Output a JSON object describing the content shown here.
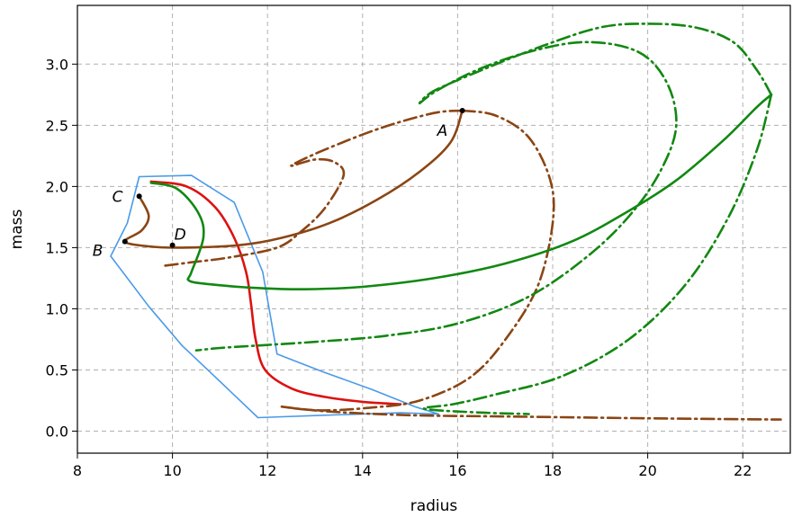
{
  "chart_data": {
    "type": "line",
    "title": "",
    "xlabel": "radius",
    "ylabel": "mass",
    "xlim": [
      8,
      23
    ],
    "ylim": [
      -0.18,
      3.48
    ],
    "xticks": [
      8,
      10,
      12,
      14,
      16,
      18,
      20,
      22
    ],
    "yticks": [
      0.0,
      0.5,
      1.0,
      1.5,
      2.0,
      2.5,
      3.0
    ],
    "xtick_labels": [
      "8",
      "10",
      "12",
      "14",
      "16",
      "18",
      "20",
      "22"
    ],
    "ytick_labels": [
      "0.0",
      "0.5",
      "1.0",
      "1.5",
      "2.0",
      "2.5",
      "3.0"
    ],
    "grid": true,
    "legend": "none",
    "series": [
      {
        "color": "#1f77b4",
        "light_color": "#4a9ae8",
        "style": "solid",
        "points": [
          [
            9.3,
            2.08
          ],
          [
            10.4,
            2.09
          ],
          [
            11.3,
            1.87
          ],
          [
            11.9,
            1.3
          ],
          [
            12.2,
            0.63
          ],
          [
            13.2,
            0.48
          ],
          [
            14.2,
            0.34
          ],
          [
            15.1,
            0.2
          ],
          [
            15.6,
            0.14
          ],
          [
            14.8,
            0.15
          ],
          [
            13.2,
            0.13
          ],
          [
            11.8,
            0.11
          ],
          [
            10.8,
            0.48
          ],
          [
            10.2,
            0.7
          ],
          [
            9.5,
            1.02
          ],
          [
            8.7,
            1.43
          ],
          [
            9.05,
            1.7
          ],
          [
            9.3,
            2.08
          ]
        ]
      },
      {
        "color": "#dd1111",
        "style": "solid",
        "points": [
          [
            9.55,
            2.04
          ],
          [
            10.3,
            2.0
          ],
          [
            10.9,
            1.83
          ],
          [
            11.3,
            1.58
          ],
          [
            11.55,
            1.3
          ],
          [
            11.65,
            1.05
          ],
          [
            11.75,
            0.75
          ],
          [
            11.95,
            0.5
          ],
          [
            12.5,
            0.35
          ],
          [
            13.2,
            0.28
          ],
          [
            14.0,
            0.24
          ],
          [
            14.8,
            0.22
          ]
        ]
      },
      {
        "color": "#8b4513",
        "style": "solid",
        "points": [
          [
            9.3,
            1.92
          ],
          [
            9.5,
            1.76
          ],
          [
            9.35,
            1.64
          ],
          [
            9.0,
            1.55
          ],
          [
            9.5,
            1.51
          ],
          [
            10.2,
            1.5
          ],
          [
            11.4,
            1.52
          ],
          [
            12.3,
            1.58
          ],
          [
            13.3,
            1.7
          ],
          [
            14.3,
            1.89
          ],
          [
            15.2,
            2.12
          ],
          [
            15.85,
            2.36
          ],
          [
            16.1,
            2.62
          ]
        ]
      },
      {
        "color": "#8b4513",
        "style": "dashdot",
        "points": [
          [
            16.1,
            2.62
          ],
          [
            16.8,
            2.58
          ],
          [
            17.5,
            2.4
          ],
          [
            17.95,
            2.05
          ],
          [
            18.0,
            1.7
          ],
          [
            17.7,
            1.2
          ],
          [
            17.1,
            0.8
          ],
          [
            16.3,
            0.45
          ],
          [
            15.2,
            0.25
          ],
          [
            14.1,
            0.19
          ],
          [
            13.1,
            0.17
          ],
          [
            12.3,
            0.2
          ],
          [
            13.3,
            0.16
          ],
          [
            15.0,
            0.13
          ],
          [
            17.0,
            0.12
          ],
          [
            20.0,
            0.105
          ],
          [
            22.8,
            0.095
          ]
        ]
      },
      {
        "color": "#8b4513",
        "style": "dashdot",
        "points": [
          [
            16.1,
            2.62
          ],
          [
            15.5,
            2.6
          ],
          [
            14.4,
            2.48
          ],
          [
            13.2,
            2.3
          ],
          [
            12.5,
            2.17
          ],
          [
            13.0,
            2.22
          ],
          [
            13.4,
            2.2
          ],
          [
            13.6,
            2.09
          ],
          [
            13.2,
            1.82
          ],
          [
            12.7,
            1.63
          ],
          [
            12.2,
            1.5
          ],
          [
            11.2,
            1.42
          ],
          [
            10.4,
            1.38
          ],
          [
            9.8,
            1.35
          ]
        ]
      },
      {
        "color": "#118811",
        "style": "solid",
        "points": [
          [
            9.55,
            2.03
          ],
          [
            10.1,
            1.98
          ],
          [
            10.55,
            1.78
          ],
          [
            10.65,
            1.58
          ],
          [
            10.4,
            1.3
          ],
          [
            10.35,
            1.23
          ],
          [
            10.8,
            1.2
          ],
          [
            11.8,
            1.17
          ],
          [
            12.8,
            1.16
          ],
          [
            14.0,
            1.18
          ],
          [
            15.5,
            1.25
          ],
          [
            17.0,
            1.37
          ],
          [
            18.4,
            1.55
          ],
          [
            19.6,
            1.8
          ],
          [
            20.6,
            2.05
          ],
          [
            21.6,
            2.38
          ],
          [
            22.3,
            2.65
          ],
          [
            22.6,
            2.75
          ]
        ]
      },
      {
        "color": "#118811",
        "style": "dashdot",
        "points": [
          [
            22.6,
            2.75
          ],
          [
            22.3,
            2.95
          ],
          [
            21.8,
            3.18
          ],
          [
            21.0,
            3.3
          ],
          [
            20.0,
            3.33
          ],
          [
            19.0,
            3.3
          ],
          [
            17.8,
            3.15
          ],
          [
            16.5,
            2.95
          ],
          [
            15.5,
            2.78
          ],
          [
            15.2,
            2.68
          ],
          [
            15.55,
            2.78
          ],
          [
            16.4,
            2.95
          ],
          [
            17.5,
            3.1
          ],
          [
            18.7,
            3.18
          ],
          [
            19.8,
            3.1
          ],
          [
            20.4,
            2.85
          ],
          [
            20.6,
            2.5
          ],
          [
            20.3,
            2.15
          ],
          [
            19.7,
            1.8
          ],
          [
            18.8,
            1.45
          ],
          [
            17.5,
            1.1
          ],
          [
            16.0,
            0.88
          ],
          [
            14.5,
            0.78
          ],
          [
            13.0,
            0.73
          ],
          [
            11.8,
            0.7
          ],
          [
            11.0,
            0.68
          ],
          [
            10.5,
            0.66
          ]
        ]
      },
      {
        "color": "#118811",
        "style": "dashdot",
        "points": [
          [
            22.6,
            2.75
          ],
          [
            22.3,
            2.3
          ],
          [
            21.7,
            1.75
          ],
          [
            20.8,
            1.2
          ],
          [
            19.6,
            0.75
          ],
          [
            18.2,
            0.45
          ],
          [
            16.8,
            0.3
          ],
          [
            15.9,
            0.22
          ],
          [
            15.3,
            0.19
          ],
          [
            15.6,
            0.17
          ],
          [
            16.6,
            0.15
          ],
          [
            17.5,
            0.14
          ]
        ]
      }
    ],
    "points": [
      {
        "label": "A",
        "x": 16.1,
        "y": 2.62
      },
      {
        "label": "C",
        "x": 9.3,
        "y": 1.92
      },
      {
        "label": "B",
        "x": 9.0,
        "y": 1.55
      },
      {
        "label": "D",
        "x": 10.0,
        "y": 1.52
      }
    ]
  }
}
